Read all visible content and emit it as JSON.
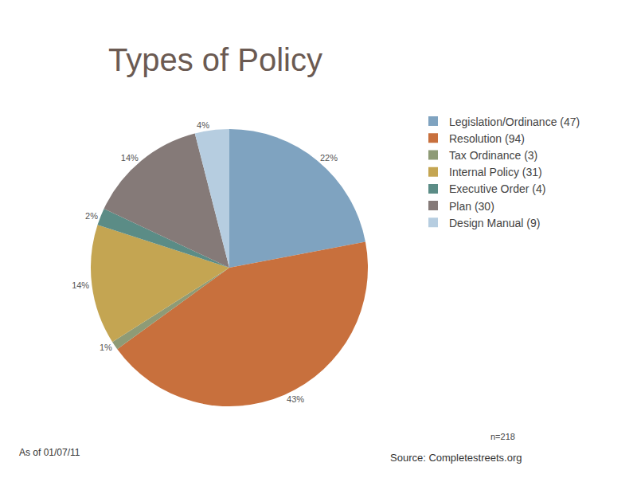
{
  "chart_data": {
    "type": "pie",
    "title": "Types of Policy",
    "categories": [
      "Legislation/Ordinance (47)",
      "Resolution (94)",
      "Tax Ordinance (3)",
      "Internal Policy (31)",
      "Executive Order (4)",
      "Plan (30)",
      "Design Manual (9)"
    ],
    "values": [
      22,
      43,
      1,
      14,
      2,
      14,
      4
    ],
    "value_labels": [
      "22%",
      "43%",
      "1%",
      "14%",
      "2%",
      "14%",
      "4%"
    ],
    "colors": [
      "#7fa3c0",
      "#c8703d",
      "#8e9b76",
      "#c4a552",
      "#5b8c86",
      "#857a78",
      "#b6cde0"
    ],
    "data_labels": true,
    "legend": "right",
    "annotations": [
      "n=218",
      "As of 01/07/11",
      "Source: Completestreets.org"
    ]
  }
}
